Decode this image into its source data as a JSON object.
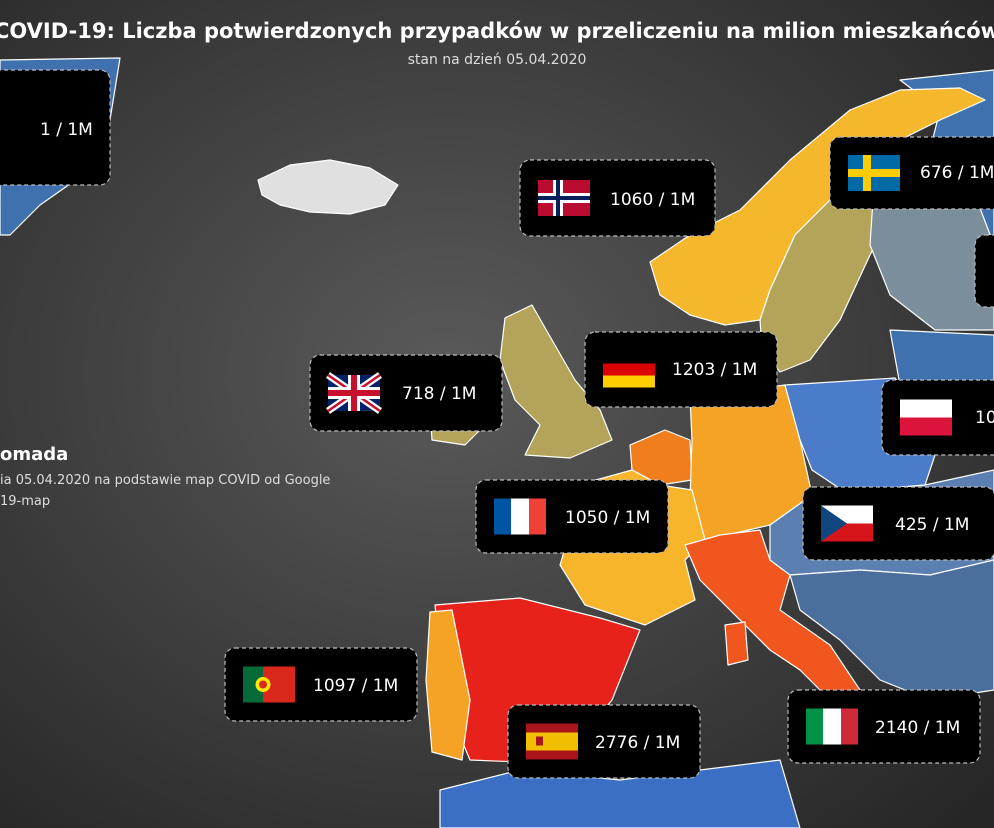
{
  "header": {
    "title": "COVID-19: Liczba potwierdzonych przypadków w przeliczeniu na milion mieszkańców",
    "subtitle": "stan na dzień 05.04.2020"
  },
  "callouts": [
    {
      "label": "1 / 1M"
    },
    {
      "label": "1060 / 1M"
    },
    {
      "label": "676 / 1M"
    },
    {
      "label": "1203 / 1M"
    },
    {
      "label": "718 / 1M"
    },
    {
      "label": "10"
    },
    {
      "label": "1050 / 1M"
    },
    {
      "label": "425 / 1M"
    },
    {
      "label": "1097 / 1M"
    },
    {
      "label": "2776 / 1M"
    },
    {
      "label": "2140 / 1M"
    }
  ],
  "source": {
    "author": "omada",
    "lines": [
      "ia 05.04.2020 na podstawie map COVID od Google",
      "19-map"
    ]
  }
}
